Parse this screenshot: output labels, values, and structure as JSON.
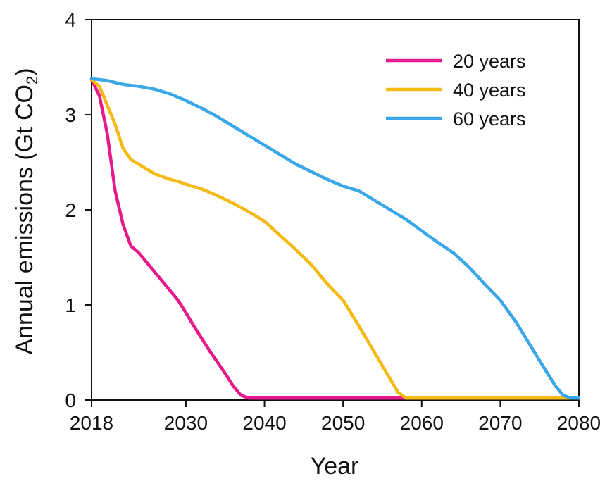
{
  "chart_data": {
    "type": "line",
    "xlabel": "Year",
    "ylabel_prefix": "Annual emissions (Gt CO",
    "ylabel_sub": "2",
    "ylabel_suffix": ")",
    "xlim": [
      2018,
      2080
    ],
    "ylim": [
      0,
      4
    ],
    "x_ticks": [
      2018,
      2030,
      2040,
      2050,
      2060,
      2070,
      2080
    ],
    "y_ticks": [
      0,
      1,
      2,
      3,
      4
    ],
    "grid": false,
    "legend_position": "top-right",
    "series": [
      {
        "name": "20 years",
        "color": "#e8198b",
        "x": [
          2018,
          2019,
          2020,
          2021,
          2022,
          2023,
          2024,
          2025,
          2026,
          2027,
          2028,
          2029,
          2030,
          2031,
          2032,
          2033,
          2034,
          2035,
          2036,
          2037,
          2038,
          2039,
          2040,
          2050,
          2060,
          2070,
          2080
        ],
        "y": [
          3.37,
          3.2,
          2.8,
          2.2,
          1.85,
          1.62,
          1.55,
          1.45,
          1.35,
          1.25,
          1.15,
          1.05,
          0.92,
          0.78,
          0.65,
          0.52,
          0.4,
          0.28,
          0.15,
          0.05,
          0.02,
          0.02,
          0.02,
          0.02,
          0.02,
          0.02,
          0.02
        ]
      },
      {
        "name": "40 years",
        "color": "#f5b914",
        "x": [
          2018,
          2019,
          2020,
          2021,
          2022,
          2023,
          2024,
          2025,
          2026,
          2027,
          2028,
          2029,
          2030,
          2032,
          2034,
          2036,
          2038,
          2040,
          2042,
          2044,
          2046,
          2048,
          2050,
          2052,
          2054,
          2056,
          2057,
          2058,
          2059,
          2060,
          2070,
          2080
        ],
        "y": [
          3.37,
          3.3,
          3.1,
          2.9,
          2.65,
          2.53,
          2.48,
          2.43,
          2.38,
          2.35,
          2.32,
          2.3,
          2.27,
          2.22,
          2.15,
          2.07,
          1.98,
          1.88,
          1.73,
          1.58,
          1.42,
          1.22,
          1.05,
          0.78,
          0.5,
          0.22,
          0.08,
          0.02,
          0.02,
          0.02,
          0.02,
          0.02
        ]
      },
      {
        "name": "60 years",
        "color": "#3aa7e8",
        "x": [
          2018,
          2020,
          2022,
          2024,
          2026,
          2028,
          2030,
          2032,
          2034,
          2036,
          2038,
          2040,
          2042,
          2044,
          2046,
          2048,
          2050,
          2052,
          2054,
          2056,
          2058,
          2060,
          2062,
          2064,
          2066,
          2068,
          2070,
          2072,
          2074,
          2076,
          2077,
          2078,
          2079,
          2080
        ],
        "y": [
          3.38,
          3.36,
          3.32,
          3.3,
          3.27,
          3.22,
          3.15,
          3.07,
          2.98,
          2.88,
          2.78,
          2.68,
          2.58,
          2.48,
          2.4,
          2.32,
          2.25,
          2.2,
          2.1,
          2.0,
          1.9,
          1.78,
          1.66,
          1.55,
          1.4,
          1.22,
          1.05,
          0.82,
          0.55,
          0.28,
          0.15,
          0.05,
          0.02,
          0.02
        ]
      }
    ]
  }
}
